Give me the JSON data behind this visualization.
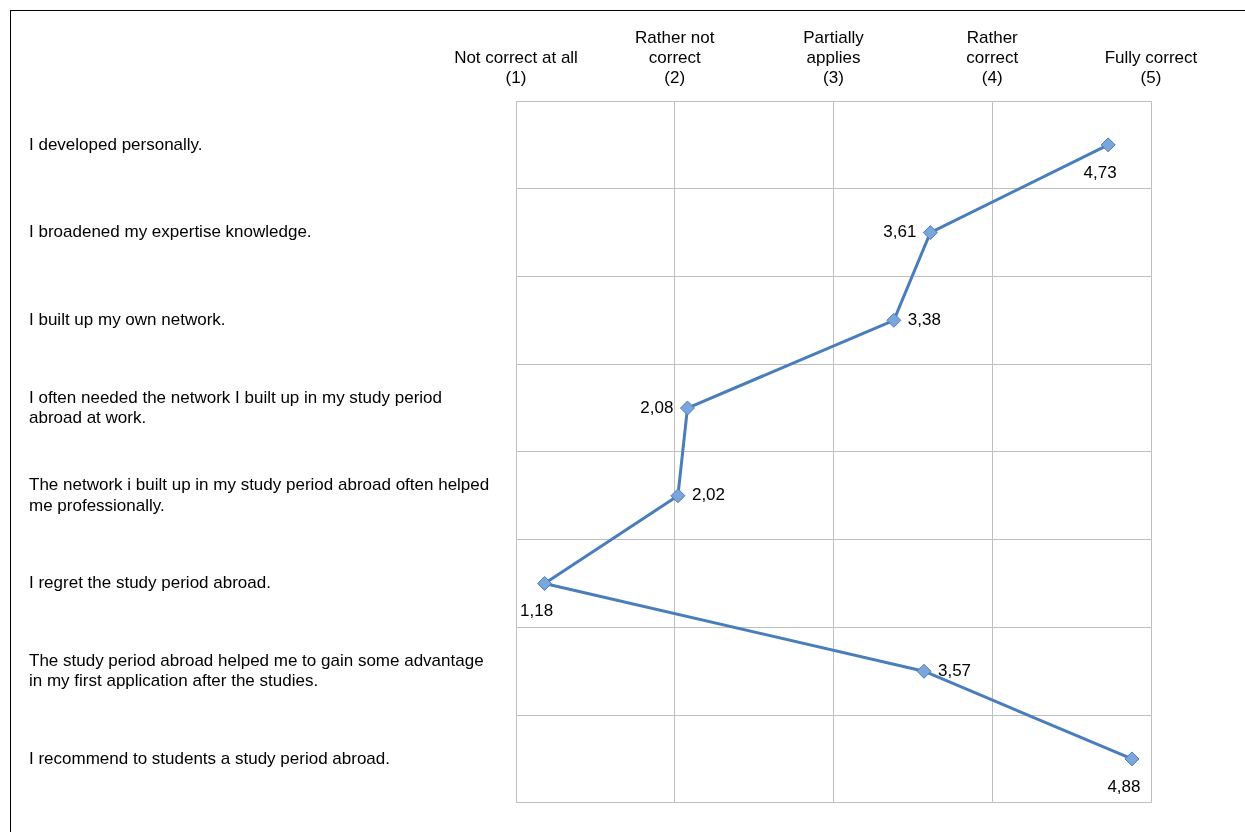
{
  "chart_data": {
    "type": "line",
    "orientation": "horizontal",
    "categories": [
      "I developed personally.",
      "I broadened my expertise knowledge.",
      "I built up my own network.",
      "I often needed the network I built up in my study period abroad at work.",
      "The network i built up in my study period abroad often helped me professionally.",
      "I regret the study period abroad.",
      "The study period abroad helped me to gain some advantage in my first application after the studies.",
      "I recommend to students a study period abroad."
    ],
    "values": [
      4.73,
      3.61,
      3.38,
      2.08,
      2.02,
      1.18,
      3.57,
      4.88
    ],
    "value_labels": [
      "4,73",
      "3,61",
      "3,38",
      "2,08",
      "2,02",
      "1,18",
      "3,57",
      "4,88"
    ],
    "color": "#4a7ebb",
    "marker": "diamond",
    "line_style": "solid",
    "grid": true,
    "xlim": [
      1,
      5
    ],
    "xticks": [
      {
        "value": 1,
        "label": "Not correct at all\n(1)"
      },
      {
        "value": 2,
        "label": "Rather not\ncorrect\n(2)"
      },
      {
        "value": 3,
        "label": "Partially\napplies\n(3)"
      },
      {
        "value": 4,
        "label": "Rather\ncorrect\n(4)"
      },
      {
        "value": 5,
        "label": "Fully correct\n(5)"
      }
    ]
  }
}
